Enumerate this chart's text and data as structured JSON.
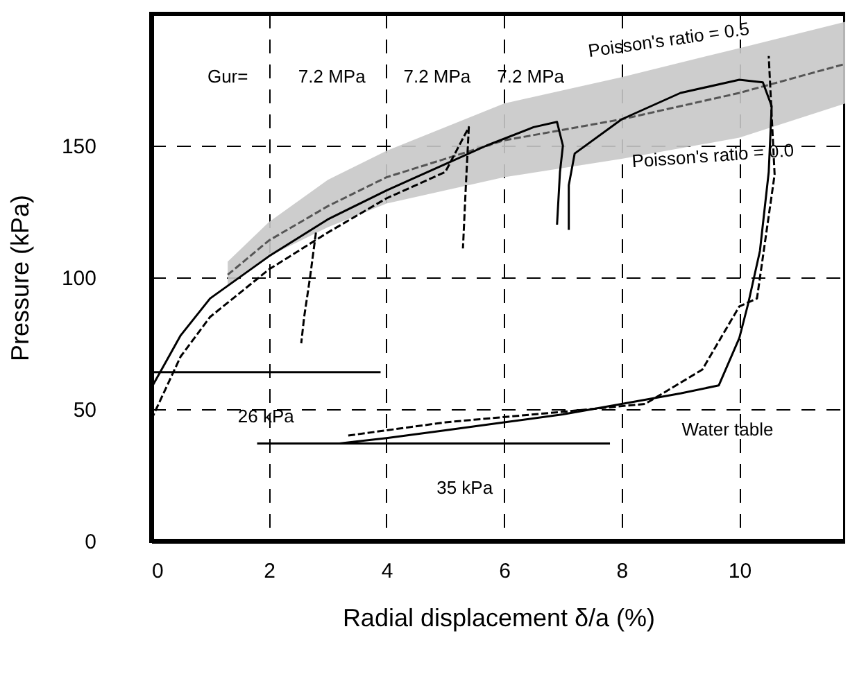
{
  "chart_data": {
    "type": "line",
    "xlabel": "Radial displacement δ/a  (%)",
    "ylabel": "Pressure (kPa)",
    "xlim": [
      0,
      11.8
    ],
    "xticks": [
      0,
      2,
      4,
      6,
      8,
      10
    ],
    "ylim": [
      0,
      200
    ],
    "yticks": [
      0,
      50,
      100,
      150
    ],
    "grid": true,
    "marker": "none",
    "series": [
      {
        "line_style": "dashed",
        "color": "#555555",
        "x": [
          1.3,
          2,
          3,
          4,
          6,
          8,
          10,
          11.8
        ],
        "values": [
          101,
          114,
          127,
          138,
          152,
          160,
          170,
          181
        ],
        "lower": [
          97,
          108,
          119,
          128,
          138,
          145,
          153,
          166
        ],
        "upper": [
          106,
          121,
          137,
          148,
          166,
          176,
          187,
          197
        ]
      },
      {
        "line_style": "solid",
        "color": "#000000",
        "x": [
          0,
          0.5,
          1,
          2,
          3,
          4,
          5,
          5.7,
          6.5,
          6.9,
          7.0,
          6.95,
          6.9
        ],
        "values": [
          58,
          78,
          92,
          108,
          122,
          133,
          143,
          150,
          157,
          159,
          150,
          140,
          120
        ]
      },
      {
        "line_style": "solid",
        "color": "#000000",
        "x": [
          7.1,
          7.1,
          7.2,
          8,
          9,
          10,
          10.4,
          10.55,
          10.5,
          10.35,
          10.15,
          10.0,
          9.65,
          9,
          8,
          7,
          6,
          5,
          4,
          3.2
        ],
        "values": [
          118,
          135,
          147,
          160,
          170,
          175,
          174,
          165,
          140,
          110,
          90,
          77,
          59,
          56,
          52,
          48,
          45,
          42,
          39,
          37
        ]
      },
      {
        "line_style": "dashed",
        "color": "#000000",
        "x": [
          0,
          0.5,
          1,
          2,
          3,
          4,
          5,
          5.4,
          5.35,
          5.3
        ],
        "values": [
          46,
          70,
          85,
          103,
          117,
          130,
          140,
          157,
          135,
          111
        ]
      },
      {
        "line_style": "dashed",
        "color": "#000000",
        "x": [
          2.8,
          2.7,
          2.6,
          2.55
        ],
        "values": [
          117,
          100,
          85,
          75
        ]
      },
      {
        "line_style": "dashed",
        "color": "#000000",
        "x": [
          3.35,
          5,
          7,
          8.4,
          9.37,
          10.0,
          10.3,
          10.6,
          10.5
        ],
        "values": [
          40,
          45,
          49,
          52,
          65,
          89,
          92,
          139,
          184
        ]
      },
      {
        "line_style": "solid",
        "color": "#000000",
        "x": [
          0,
          3.9
        ],
        "values": [
          64,
          64
        ]
      },
      {
        "line_style": "solid",
        "color": "#000000",
        "x": [
          1.8,
          7.8
        ],
        "values": [
          37,
          37
        ]
      }
    ],
    "annotations": [
      "Gur=",
      "7.2 MPa",
      "7.2 MPa",
      "7.2 MPa",
      "Poisson's ratio = 0.5",
      "Poisson's ratio = 0.0",
      "26 kPa",
      "35 kPa",
      "Water table"
    ]
  }
}
